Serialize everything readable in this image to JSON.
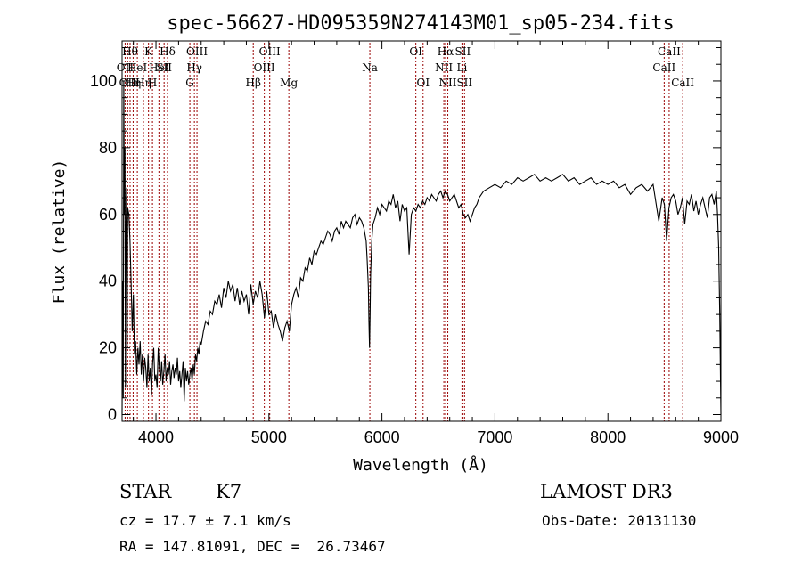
{
  "chart_data": {
    "type": "line",
    "title": "spec-56627-HD095359N274143M01_sp05-234.fits",
    "xlabel": "Wavelength (Å)",
    "ylabel": "Flux (relative)",
    "xlim": [
      3700,
      9000
    ],
    "ylim": [
      -2,
      112
    ],
    "xticks": [
      4000,
      5000,
      6000,
      7000,
      8000,
      9000
    ],
    "yticks": [
      0,
      20,
      40,
      60,
      80,
      100
    ],
    "grid": false,
    "line_color": "#000000",
    "marker_color": "#990000",
    "series": [
      {
        "x": [
          3700,
          3705,
          3710,
          3715,
          3720,
          3725,
          3730,
          3735,
          3740,
          3745,
          3750,
          3760,
          3770,
          3780,
          3790,
          3800,
          3810,
          3820,
          3830,
          3840,
          3850,
          3860,
          3870,
          3880,
          3890,
          3900,
          3910,
          3920,
          3930,
          3940,
          3950,
          3960,
          3970,
          3980,
          3990,
          4000,
          4010,
          4020,
          4030,
          4040,
          4050,
          4060,
          4070,
          4080,
          4090,
          4100,
          4110,
          4120,
          4130,
          4140,
          4150,
          4160,
          4170,
          4180,
          4190,
          4200,
          4210,
          4220,
          4230,
          4240,
          4250,
          4260,
          4270,
          4280,
          4290,
          4300,
          4310,
          4320,
          4330,
          4340,
          4350,
          4360,
          4370,
          4380,
          4390,
          4400,
          4420,
          4440,
          4460,
          4480,
          4500,
          4520,
          4540,
          4560,
          4580,
          4600,
          4620,
          4640,
          4660,
          4680,
          4700,
          4720,
          4740,
          4760,
          4780,
          4800,
          4820,
          4840,
          4860,
          4880,
          4900,
          4920,
          4940,
          4960,
          4980,
          5000,
          5020,
          5040,
          5060,
          5080,
          5100,
          5120,
          5140,
          5160,
          5180,
          5200,
          5220,
          5240,
          5260,
          5280,
          5300,
          5320,
          5340,
          5360,
          5380,
          5400,
          5420,
          5440,
          5460,
          5480,
          5500,
          5520,
          5540,
          5560,
          5580,
          5600,
          5620,
          5640,
          5660,
          5680,
          5700,
          5720,
          5740,
          5760,
          5780,
          5800,
          5820,
          5840,
          5860,
          5870,
          5880,
          5885,
          5890,
          5895,
          5900,
          5910,
          5920,
          5940,
          5960,
          5980,
          6000,
          6020,
          6040,
          6060,
          6080,
          6100,
          6120,
          6140,
          6160,
          6180,
          6200,
          6220,
          6240,
          6260,
          6280,
          6300,
          6320,
          6340,
          6360,
          6380,
          6400,
          6420,
          6440,
          6460,
          6480,
          6500,
          6520,
          6540,
          6560,
          6580,
          6600,
          6620,
          6640,
          6660,
          6680,
          6700,
          6720,
          6740,
          6760,
          6780,
          6800,
          6820,
          6840,
          6860,
          6880,
          6900,
          6950,
          7000,
          7050,
          7100,
          7150,
          7200,
          7250,
          7300,
          7350,
          7400,
          7450,
          7500,
          7550,
          7600,
          7650,
          7700,
          7750,
          7800,
          7850,
          7900,
          7950,
          8000,
          8050,
          8100,
          8150,
          8200,
          8250,
          8300,
          8350,
          8400,
          8450,
          8480,
          8500,
          8520,
          8540,
          8560,
          8580,
          8600,
          8620,
          8640,
          8660,
          8680,
          8700,
          8720,
          8740,
          8760,
          8780,
          8800,
          8820,
          8840,
          8860,
          8880,
          8900,
          8920,
          8940,
          8960,
          8970,
          8980,
          8990,
          9000
        ],
        "y": [
          0,
          40,
          5,
          100,
          60,
          80,
          8,
          55,
          68,
          20,
          62,
          60,
          52,
          40,
          25,
          36,
          18,
          22,
          12,
          20,
          15,
          22,
          12,
          18,
          10,
          17,
          14,
          8,
          18,
          10,
          14,
          6,
          15,
          20,
          10,
          12,
          8,
          20,
          14,
          10,
          16,
          9,
          13,
          18,
          10,
          14,
          12,
          16,
          9,
          13,
          15,
          11,
          14,
          12,
          17,
          10,
          13,
          8,
          12,
          16,
          4,
          14,
          10,
          13,
          9,
          12,
          14,
          10,
          15,
          12,
          18,
          16,
          20,
          18,
          22,
          21,
          25,
          28,
          27,
          31,
          30,
          34,
          33,
          36,
          32,
          38,
          35,
          40,
          37,
          39,
          34,
          38,
          33,
          37,
          34,
          36,
          30,
          39,
          33,
          37,
          35,
          40,
          36,
          29,
          37,
          30,
          31,
          26,
          30,
          27,
          25,
          22,
          26,
          28,
          25,
          33,
          36,
          38,
          35,
          41,
          40,
          44,
          43,
          47,
          45,
          49,
          48,
          50,
          52,
          51,
          53,
          55,
          54,
          52,
          55,
          56,
          54,
          58,
          56,
          58,
          57,
          56,
          59,
          60,
          57,
          59,
          58,
          56,
          52,
          46,
          38,
          28,
          20,
          30,
          42,
          52,
          57,
          59,
          62,
          60,
          63,
          62,
          61,
          64,
          63,
          66,
          62,
          64,
          58,
          63,
          61,
          62,
          48,
          60,
          62,
          61,
          63,
          62,
          64,
          63,
          65,
          64,
          66,
          65,
          64,
          66,
          67,
          65,
          67,
          66,
          64,
          65,
          66,
          64,
          62,
          63,
          60,
          59,
          60,
          58,
          60,
          62,
          63,
          65,
          66,
          67,
          68,
          69,
          68,
          70,
          69,
          71,
          70,
          71,
          72,
          70,
          71,
          70,
          71,
          72,
          70,
          71,
          69,
          70,
          71,
          69,
          70,
          69,
          70,
          68,
          69,
          66,
          68,
          69,
          67,
          69,
          58,
          65,
          63,
          52,
          62,
          65,
          66,
          64,
          60,
          62,
          65,
          57,
          64,
          63,
          66,
          61,
          64,
          60,
          63,
          65,
          62,
          59,
          65,
          66,
          63,
          67,
          60,
          50,
          30,
          0
        ]
      }
    ],
    "lines": [
      {
        "x": 3727,
        "label": "OII",
        "row": 2
      },
      {
        "x": 3750,
        "label": "OII",
        "row": 3
      },
      {
        "x": 3771,
        "label": "Hθ",
        "row": 1
      },
      {
        "x": 3798,
        "label": "Hη",
        "row": 3
      },
      {
        "x": 3835,
        "label": "HeI",
        "row": 2
      },
      {
        "x": 3889,
        "label": "Hη",
        "row": 3
      },
      {
        "x": 3934,
        "label": "K",
        "row": 1
      },
      {
        "x": 3969,
        "label": "H",
        "row": 3
      },
      {
        "x": 4026,
        "label": "HeI",
        "row": 2
      },
      {
        "x": 4072,
        "label": "SII",
        "row": 2
      },
      {
        "x": 4102,
        "label": "Hδ",
        "row": 1
      },
      {
        "x": 4300,
        "label": "G",
        "row": 3
      },
      {
        "x": 4340,
        "label": "Hγ",
        "row": 2
      },
      {
        "x": 4363,
        "label": "OIII",
        "row": 1
      },
      {
        "x": 4861,
        "label": "Hβ",
        "row": 3
      },
      {
        "x": 4959,
        "label": "OIII",
        "row": 2
      },
      {
        "x": 5007,
        "label": "OIII",
        "row": 1
      },
      {
        "x": 5176,
        "label": "Mg",
        "row": 3
      },
      {
        "x": 5893,
        "label": "Na",
        "row": 2
      },
      {
        "x": 6300,
        "label": "OI",
        "row": 1
      },
      {
        "x": 6364,
        "label": "OI",
        "row": 3
      },
      {
        "x": 6548,
        "label": "NII",
        "row": 2
      },
      {
        "x": 6563,
        "label": "Hα",
        "row": 1
      },
      {
        "x": 6583,
        "label": "NII",
        "row": 3
      },
      {
        "x": 6708,
        "label": "Li",
        "row": 2
      },
      {
        "x": 6716,
        "label": "SII",
        "row": 1
      },
      {
        "x": 6731,
        "label": "SII",
        "row": 3
      },
      {
        "x": 8498,
        "label": "CaII",
        "row": 2
      },
      {
        "x": 8542,
        "label": "CaII",
        "row": 1
      },
      {
        "x": 8662,
        "label": "CaII",
        "row": 3
      }
    ]
  },
  "info": {
    "object_class": "STAR",
    "subclass": "K7",
    "redshift": "cz = 17.7 ± 7.1 km/s",
    "coords": "RA = 147.81091, DEC =  26.73467",
    "survey": "LAMOST DR3",
    "obs_date": "Obs-Date: 20131130"
  }
}
